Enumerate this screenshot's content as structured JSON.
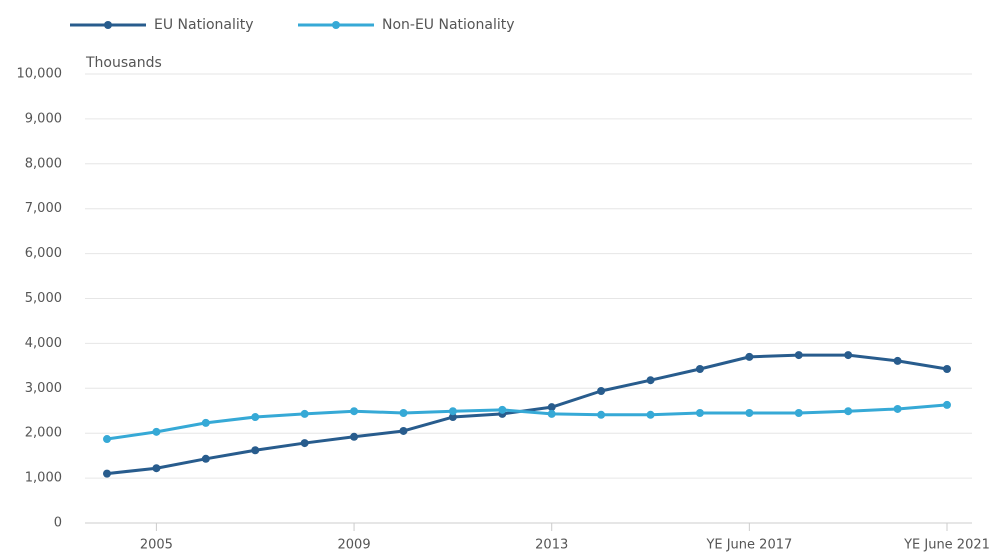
{
  "chart_data": {
    "type": "line",
    "y_label": "Thousands",
    "categories": [
      null,
      "2005",
      null,
      null,
      null,
      "2009",
      null,
      null,
      null,
      "2013",
      null,
      null,
      null,
      "YE June 2017",
      null,
      null,
      null,
      "YE June 2021"
    ],
    "series": [
      {
        "name": "EU Nationality",
        "color": "#285c8d",
        "values": [
          1100,
          1220,
          1430,
          1620,
          1780,
          1920,
          2050,
          2360,
          2430,
          2580,
          2940,
          3180,
          3430,
          3700,
          3740,
          3740,
          3610,
          3430
        ]
      },
      {
        "name": "Non-EU Nationality",
        "color": "#36a9d6",
        "values": [
          1870,
          2030,
          2230,
          2360,
          2430,
          2490,
          2450,
          2490,
          2520,
          2430,
          2410,
          2410,
          2450,
          2450,
          2450,
          2490,
          2540,
          2630
        ]
      }
    ],
    "ylim": [
      0,
      10000
    ],
    "yticks": [
      0,
      {
        "value": 1000,
        "label": "1,000"
      },
      {
        "value": 2000,
        "label": "2,000"
      },
      {
        "value": 3000,
        "label": "3,000"
      },
      {
        "value": 4000,
        "label": "4,000"
      },
      {
        "value": 5000,
        "label": "5,000"
      },
      {
        "value": 6000,
        "label": "6,000"
      },
      {
        "value": 7000,
        "label": "7,000"
      },
      {
        "value": 8000,
        "label": "8,000"
      },
      {
        "value": 9000,
        "label": "9,000"
      },
      {
        "value": 10000,
        "label": "10,000"
      }
    ],
    "grid": true,
    "legend": "top-left"
  }
}
